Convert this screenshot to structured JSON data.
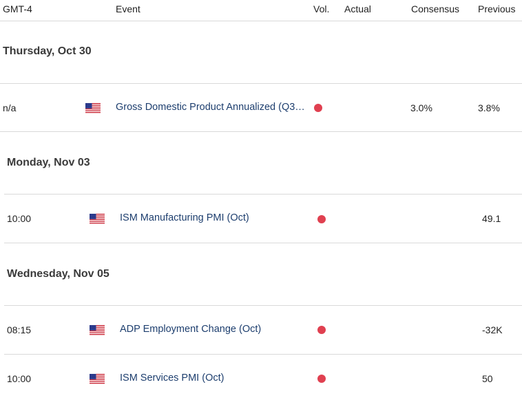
{
  "header": {
    "timezone": "GMT-4",
    "event": "Event",
    "vol": "Vol.",
    "actual": "Actual",
    "consensus": "Consensus",
    "previous": "Previous"
  },
  "groups": [
    {
      "day": "Thursday, Oct 30",
      "rows": [
        {
          "time": "n/a",
          "flag": "us-flag-icon",
          "event": "Gross Domestic Product Annualized (Q3…",
          "volatility": "high",
          "actual": "",
          "consensus": "3.0%",
          "previous": "3.8%"
        }
      ]
    },
    {
      "day": "Monday, Nov 03",
      "rows": [
        {
          "time": "10:00",
          "flag": "us-flag-icon",
          "event": "ISM Manufacturing PMI (Oct)",
          "volatility": "high",
          "actual": "",
          "consensus": "",
          "previous": "49.1"
        }
      ]
    },
    {
      "day": "Wednesday, Nov 05",
      "rows": [
        {
          "time": "08:15",
          "flag": "us-flag-icon",
          "event": "ADP Employment Change (Oct)",
          "volatility": "high",
          "actual": "",
          "consensus": "",
          "previous": "-32K"
        },
        {
          "time": "10:00",
          "flag": "us-flag-icon",
          "event": "ISM Services PMI (Oct)",
          "volatility": "high",
          "actual": "",
          "consensus": "",
          "previous": "50"
        }
      ]
    }
  ],
  "colors": {
    "volatility_dot": "#e04050",
    "event_text": "#1d3e6e"
  }
}
